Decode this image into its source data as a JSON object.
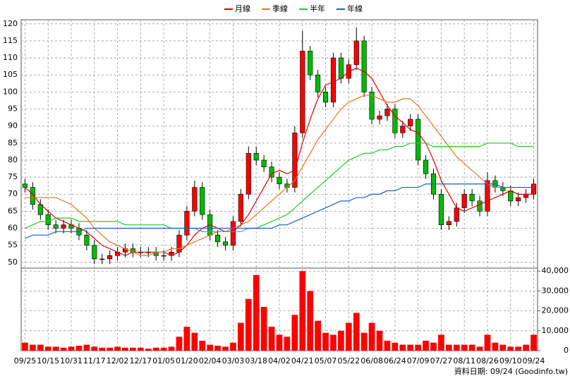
{
  "chart_data": {
    "type": "candlestick",
    "categories": [
      "09/25",
      null,
      null,
      "10/15",
      null,
      null,
      "10/31",
      null,
      null,
      "11/17",
      null,
      null,
      "12/02",
      null,
      null,
      "12/17",
      null,
      null,
      "01/05",
      null,
      null,
      "01/20",
      null,
      null,
      "02/04",
      null,
      null,
      "03/03",
      null,
      null,
      "03/18",
      null,
      null,
      "04/02",
      null,
      null,
      "04/21",
      null,
      null,
      "05/07",
      null,
      null,
      "05/22",
      null,
      null,
      "06/08",
      null,
      null,
      "06/24",
      null,
      null,
      "07/09",
      null,
      null,
      "07/27",
      null,
      null,
      "08/11",
      null,
      null,
      "08/26",
      null,
      null,
      "09/10",
      null,
      null,
      "09/24"
    ],
    "open": [
      73,
      72,
      67,
      64,
      61,
      60,
      61,
      60,
      58,
      55,
      51,
      51,
      52,
      53,
      54,
      53,
      53,
      53,
      52,
      52,
      53,
      58,
      65,
      72,
      64,
      58,
      56,
      55,
      62,
      70,
      82,
      80,
      78,
      75,
      73,
      72,
      88,
      112,
      105,
      100,
      97,
      110,
      104,
      108,
      115,
      100,
      92,
      93,
      95,
      88,
      90,
      92,
      80,
      76,
      70,
      61,
      62,
      66,
      70,
      68,
      65,
      74,
      72,
      71,
      68,
      69,
      70
    ],
    "high": [
      74.5,
      73.5,
      68.5,
      65.5,
      62.5,
      62.5,
      62.5,
      61.5,
      59.5,
      56.5,
      52.5,
      53.5,
      54.5,
      55.5,
      55.5,
      54.5,
      54.5,
      54.5,
      53.5,
      54.5,
      59.5,
      66.5,
      74,
      73.5,
      65.5,
      59.5,
      57.5,
      63.5,
      71.5,
      84,
      84,
      81.5,
      79.5,
      76.5,
      74.5,
      90,
      118,
      113.5,
      106.5,
      101.5,
      111.5,
      111.5,
      109.5,
      119,
      116.5,
      101.5,
      94.5,
      96.5,
      96.5,
      91.5,
      93.5,
      93.5,
      81.5,
      77.5,
      71.5,
      63.5,
      67.5,
      71.5,
      71.5,
      69.5,
      76.5,
      75.5,
      73.5,
      72.5,
      70.5,
      71.5,
      74.5
    ],
    "low": [
      70.5,
      65.5,
      62.5,
      59.5,
      58.5,
      58.5,
      58.5,
      56.5,
      53.5,
      49.5,
      49.5,
      49.5,
      50.5,
      51.5,
      51.5,
      51.5,
      51.5,
      50.5,
      50.5,
      50.5,
      51.5,
      56.5,
      63.5,
      62.5,
      56.5,
      54.5,
      53.5,
      53.5,
      60.5,
      68.5,
      78.5,
      76.5,
      73.5,
      71.5,
      70.5,
      70.5,
      86.5,
      103.5,
      98.5,
      95.5,
      95.5,
      102.5,
      102.5,
      106.5,
      98.5,
      90.5,
      90.5,
      91.5,
      86.5,
      86.5,
      88.5,
      78.5,
      74.5,
      68.5,
      59.5,
      59.5,
      60.5,
      64.5,
      66.5,
      63.5,
      63.5,
      70.5,
      69.5,
      66.5,
      66.5,
      67.5,
      68.5
    ],
    "close": [
      72,
      67,
      64,
      61,
      60,
      61,
      60,
      58,
      55,
      51,
      51,
      52,
      53,
      54,
      53,
      53,
      53,
      52,
      52,
      53,
      58,
      65,
      72,
      64,
      58,
      56,
      55,
      62,
      70,
      82,
      80,
      78,
      75,
      73,
      72,
      88,
      112,
      105,
      100,
      97,
      110,
      104,
      108,
      115,
      100,
      92,
      93,
      95,
      88,
      90,
      92,
      80,
      76,
      70,
      61,
      62,
      66,
      70,
      68,
      65,
      74,
      72,
      71,
      68,
      69,
      70,
      73
    ],
    "up_color": "#ff0000",
    "down_color": "#00bb00",
    "series": [
      {
        "name": "月線",
        "color": "#e00000",
        "values": [
          72,
          70,
          67,
          65,
          63,
          62,
          61,
          60,
          59,
          57,
          55,
          54,
          53,
          52,
          53,
          53,
          53,
          53,
          53,
          52,
          53,
          55,
          58,
          60,
          61,
          60,
          59,
          59,
          61,
          64,
          68,
          72,
          76,
          77,
          76,
          77,
          85,
          92,
          98,
          102,
          103,
          104,
          106,
          107,
          106,
          104,
          100,
          96,
          93,
          91,
          89,
          88,
          85,
          80,
          74,
          70,
          66,
          65,
          66,
          67,
          68,
          69,
          70,
          71,
          70,
          70,
          70
        ]
      },
      {
        "name": "季線",
        "color": "#f07020",
        "values": [
          69,
          69,
          69,
          69,
          69,
          68,
          67,
          65,
          63,
          60,
          58,
          56,
          55,
          54,
          53,
          52,
          52,
          53,
          53,
          54,
          54,
          55,
          56,
          57,
          58,
          59,
          59,
          60,
          61,
          62,
          64,
          66,
          68,
          70,
          72,
          74,
          78,
          82,
          86,
          89,
          92,
          95,
          97,
          98,
          99,
          99,
          98,
          97,
          97,
          98,
          98,
          96,
          93,
          90,
          87,
          84,
          81,
          79,
          77,
          75,
          73,
          72,
          72,
          72,
          72,
          72,
          72
        ]
      },
      {
        "name": "半年",
        "color": "#22cc22",
        "values": [
          60,
          61,
          62,
          62,
          63,
          63,
          63,
          62,
          62,
          62,
          62,
          62,
          62,
          61,
          61,
          61,
          61,
          61,
          61,
          60,
          60,
          60,
          60,
          59,
          59,
          59,
          59,
          59,
          59,
          60,
          60,
          61,
          62,
          63,
          64,
          66,
          68,
          70,
          72,
          74,
          76,
          78,
          80,
          81,
          82,
          82,
          83,
          83,
          84,
          84,
          85,
          85,
          85,
          84,
          84,
          84,
          84,
          84,
          84,
          84,
          85,
          85,
          85,
          85,
          84,
          84,
          84
        ]
      },
      {
        "name": "年線",
        "color": "#1060d0",
        "values": [
          57,
          58,
          58,
          58,
          59,
          59,
          59,
          59,
          60,
          60,
          60,
          60,
          60,
          60,
          60,
          60,
          60,
          60,
          60,
          60,
          60,
          60,
          60,
          60,
          60,
          60,
          60,
          60,
          60,
          60,
          60,
          60,
          60,
          61,
          61,
          62,
          63,
          64,
          65,
          66,
          67,
          68,
          68,
          69,
          69,
          70,
          70,
          71,
          71,
          72,
          72,
          72,
          73,
          73,
          73,
          73,
          73,
          73,
          73,
          73,
          73,
          73,
          72,
          72,
          72,
          72,
          72
        ]
      }
    ],
    "volume": {
      "color": "#ff0000",
      "axis": "y2",
      "values": [
        4000,
        3000,
        3000,
        2000,
        2000,
        1500,
        2000,
        2500,
        3000,
        2000,
        1500,
        1500,
        2000,
        1500,
        1500,
        1500,
        1000,
        1500,
        1500,
        2000,
        7000,
        12000,
        9000,
        5000,
        3000,
        2500,
        2000,
        4000,
        14000,
        26000,
        38000,
        22000,
        12000,
        8000,
        7000,
        18000,
        40000,
        30000,
        15000,
        9000,
        8000,
        10000,
        14000,
        19000,
        9000,
        14000,
        10000,
        5000,
        4000,
        3000,
        3000,
        3000,
        5000,
        4000,
        8000,
        3000,
        3000,
        3000,
        3000,
        2000,
        8000,
        4000,
        3000,
        2000,
        2000,
        3000,
        8000
      ]
    },
    "ylim": [
      48.3,
      121.2
    ],
    "yticks": [
      50,
      55,
      60,
      65,
      70,
      75,
      80,
      85,
      90,
      95,
      100,
      105,
      110,
      115,
      120
    ],
    "y2lim": [
      0,
      41500
    ],
    "y2ticks": [
      0,
      {
        "value": 10000,
        "label": "10,000"
      },
      {
        "value": 20000,
        "label": "20,000"
      },
      {
        "value": 30000,
        "label": "30,000"
      },
      {
        "value": 40000,
        "label": "40,000"
      }
    ],
    "grid": true,
    "legend": "top",
    "source": "資料日期: 09/24  (Goodinfo.tw)"
  }
}
